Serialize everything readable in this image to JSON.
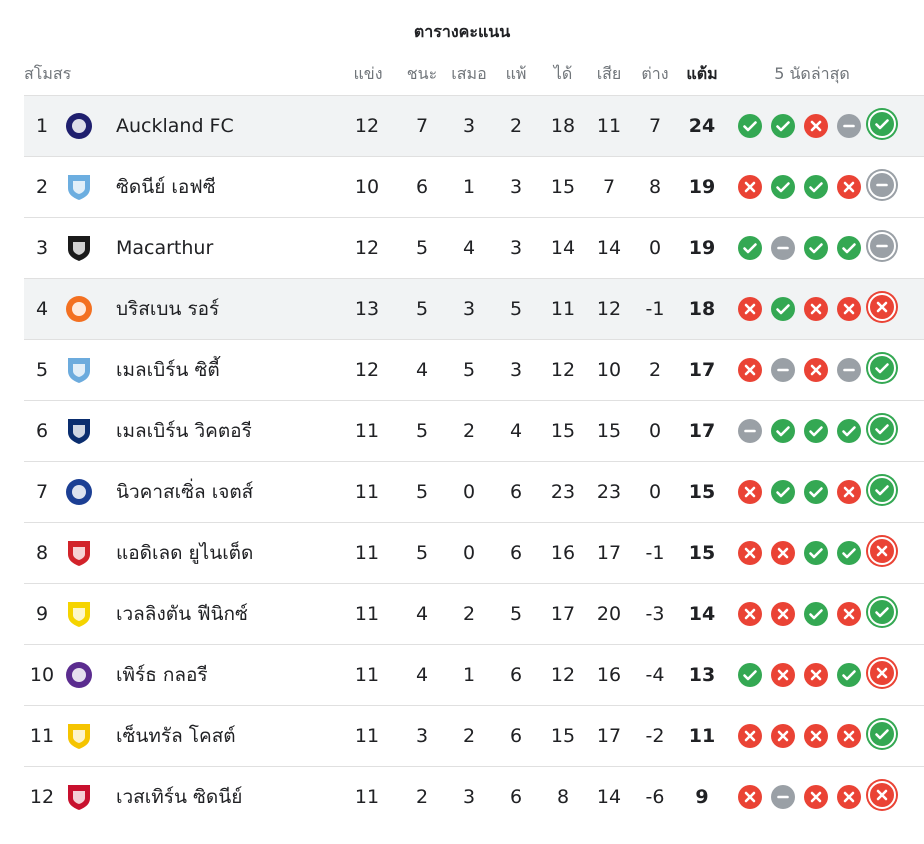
{
  "title": "ตารางคะแนน",
  "headers": {
    "club": "สโมสร",
    "played": "แข่ง",
    "won": "ชนะ",
    "drawn": "เสมอ",
    "lost": "แพ้",
    "gf": "ได้",
    "ga": "เสีย",
    "gd": "ต่าง",
    "points": "แต้ม",
    "form": "5 นัดล่าสุด"
  },
  "rows": [
    {
      "pos": "1",
      "team": "Auckland FC",
      "logo": "auckland-fc-logo",
      "logo_color": "#1f1f6e",
      "played": "12",
      "won": "7",
      "drawn": "3",
      "lost": "2",
      "gf": "18",
      "ga": "11",
      "gd": "7",
      "pts": "24",
      "form": [
        "W",
        "W",
        "L",
        "D",
        "W"
      ],
      "highlight": true
    },
    {
      "pos": "2",
      "team": "ซิดนีย์ เอฟซี",
      "logo": "sydney-fc-logo",
      "logo_color": "#6caee0",
      "played": "10",
      "won": "6",
      "drawn": "1",
      "lost": "3",
      "gf": "15",
      "ga": "7",
      "gd": "8",
      "pts": "19",
      "form": [
        "L",
        "W",
        "W",
        "L",
        "D"
      ],
      "highlight": false
    },
    {
      "pos": "3",
      "team": "Macarthur",
      "logo": "macarthur-fc-logo",
      "logo_color": "#1a1a1a",
      "played": "12",
      "won": "5",
      "drawn": "4",
      "lost": "3",
      "gf": "14",
      "ga": "14",
      "gd": "0",
      "pts": "19",
      "form": [
        "W",
        "D",
        "W",
        "W",
        "D"
      ],
      "highlight": false
    },
    {
      "pos": "4",
      "team": "บริสเบน รอร์",
      "logo": "brisbane-roar-logo",
      "logo_color": "#f37021",
      "played": "13",
      "won": "5",
      "drawn": "3",
      "lost": "5",
      "gf": "11",
      "ga": "12",
      "gd": "-1",
      "pts": "18",
      "form": [
        "L",
        "W",
        "L",
        "L",
        "L"
      ],
      "highlight": true
    },
    {
      "pos": "5",
      "team": "เมลเบิร์น ซิตี้",
      "logo": "melbourne-city-logo",
      "logo_color": "#6cabdd",
      "played": "12",
      "won": "4",
      "drawn": "5",
      "lost": "3",
      "gf": "12",
      "ga": "10",
      "gd": "2",
      "pts": "17",
      "form": [
        "L",
        "D",
        "L",
        "D",
        "W"
      ],
      "highlight": false
    },
    {
      "pos": "6",
      "team": "เมลเบิร์น วิคตอรี",
      "logo": "melbourne-victory-logo",
      "logo_color": "#0a2d6e",
      "played": "11",
      "won": "5",
      "drawn": "2",
      "lost": "4",
      "gf": "15",
      "ga": "15",
      "gd": "0",
      "pts": "17",
      "form": [
        "D",
        "W",
        "W",
        "W",
        "W"
      ],
      "highlight": false
    },
    {
      "pos": "7",
      "team": "นิวคาสเซิ่ล เจตส์",
      "logo": "newcastle-jets-logo",
      "logo_color": "#1c3f94",
      "played": "11",
      "won": "5",
      "drawn": "0",
      "lost": "6",
      "gf": "23",
      "ga": "23",
      "gd": "0",
      "pts": "15",
      "form": [
        "L",
        "W",
        "W",
        "L",
        "W"
      ],
      "highlight": false
    },
    {
      "pos": "8",
      "team": "แอดิเลด ยูไนเต็ด",
      "logo": "adelaide-united-logo",
      "logo_color": "#d2232a",
      "played": "11",
      "won": "5",
      "drawn": "0",
      "lost": "6",
      "gf": "16",
      "ga": "17",
      "gd": "-1",
      "pts": "15",
      "form": [
        "L",
        "L",
        "W",
        "W",
        "L"
      ],
      "highlight": false
    },
    {
      "pos": "9",
      "team": "เวลลิงตัน ฟีนิกซ์",
      "logo": "wellington-phoenix-logo",
      "logo_color": "#f5d400",
      "played": "11",
      "won": "4",
      "drawn": "2",
      "lost": "5",
      "gf": "17",
      "ga": "20",
      "gd": "-3",
      "pts": "14",
      "form": [
        "L",
        "L",
        "W",
        "L",
        "W"
      ],
      "highlight": false
    },
    {
      "pos": "10",
      "team": "เพิร์ธ กลอรี",
      "logo": "perth-glory-logo",
      "logo_color": "#5b2c8f",
      "played": "11",
      "won": "4",
      "drawn": "1",
      "lost": "6",
      "gf": "12",
      "ga": "16",
      "gd": "-4",
      "pts": "13",
      "form": [
        "W",
        "L",
        "L",
        "W",
        "L"
      ],
      "highlight": false
    },
    {
      "pos": "11",
      "team": "เซ็นทรัล โคสต์",
      "logo": "central-coast-mariners-logo",
      "logo_color": "#f5c400",
      "played": "11",
      "won": "3",
      "drawn": "2",
      "lost": "6",
      "gf": "15",
      "ga": "17",
      "gd": "-2",
      "pts": "11",
      "form": [
        "L",
        "L",
        "L",
        "L",
        "W"
      ],
      "highlight": false
    },
    {
      "pos": "12",
      "team": "เวสเทิร์น ซิดนีย์",
      "logo": "western-sydney-wanderers-logo",
      "logo_color": "#c8102e",
      "played": "11",
      "won": "2",
      "drawn": "3",
      "lost": "6",
      "gf": "8",
      "ga": "14",
      "gd": "-6",
      "pts": "9",
      "form": [
        "L",
        "D",
        "L",
        "L",
        "L"
      ],
      "highlight": false
    }
  ],
  "form_colors": {
    "W": "#34a853",
    "L": "#ea4335",
    "D": "#9aa0a6"
  }
}
